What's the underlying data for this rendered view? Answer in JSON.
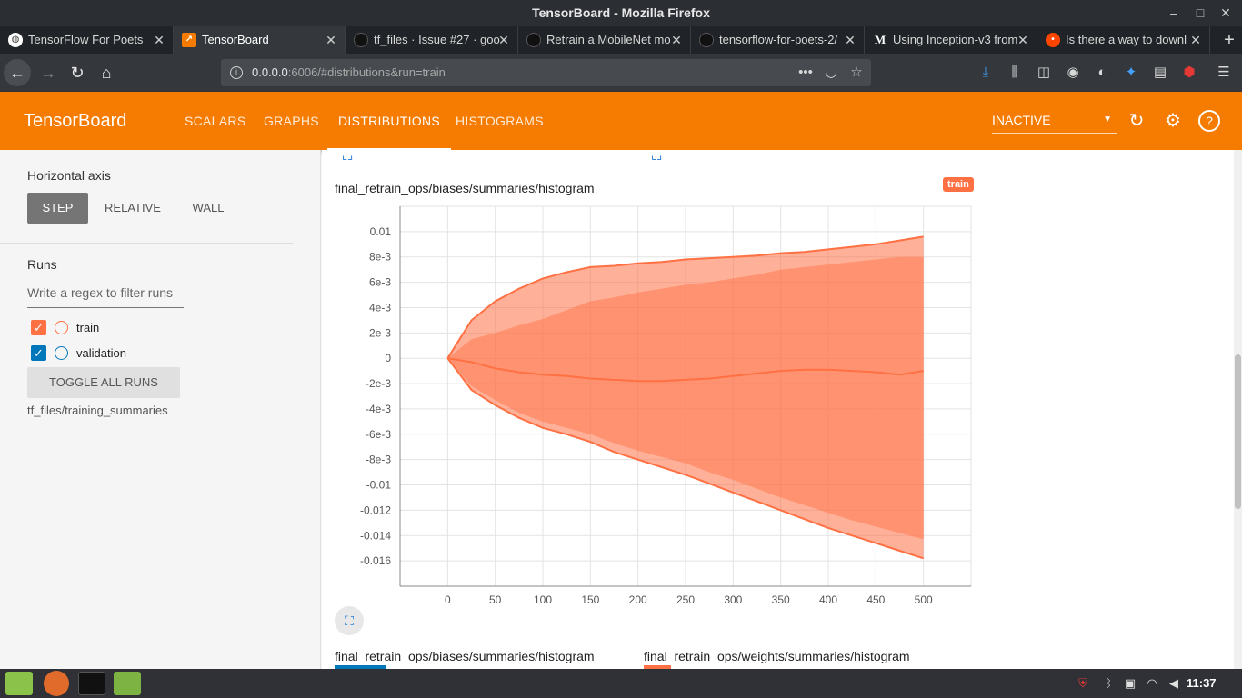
{
  "window": {
    "title": "TensorBoard - Mozilla Firefox"
  },
  "tabs": [
    {
      "title": "TensorFlow For Poets",
      "favicon": "globe-icon",
      "color": "#ffffff"
    },
    {
      "title": "TensorBoard",
      "favicon": "tensorboard-icon",
      "color": "#f57c00",
      "active": true
    },
    {
      "title": "tf_files · Issue #27 · goo",
      "favicon": "github-icon",
      "color": "#222222"
    },
    {
      "title": "Retrain a MobileNet mo",
      "favicon": "github-icon",
      "color": "#222222"
    },
    {
      "title": "tensorflow-for-poets-2/",
      "favicon": "github-icon",
      "color": "#222222"
    },
    {
      "title": "Using Inception-v3 from",
      "favicon": "medium-icon",
      "color": "#ffffff",
      "glyph": "M"
    },
    {
      "title": "Is there a way to downl",
      "favicon": "reddit-icon",
      "color": "#ff4500"
    }
  ],
  "navbar": {
    "url_host": "0.0.0.0",
    "url_rest": ":6006/#distributions&run=train"
  },
  "tensorboard": {
    "logo": "TensorBoard",
    "tabs": [
      "SCALARS",
      "GRAPHS",
      "DISTRIBUTIONS",
      "HISTOGRAMS"
    ],
    "active_tab": "DISTRIBUTIONS",
    "reload_status": "INACTIVE"
  },
  "sidebar": {
    "horizontal_axis_label": "Horizontal axis",
    "axis_options": [
      "STEP",
      "RELATIVE",
      "WALL"
    ],
    "runs_label": "Runs",
    "regex_placeholder": "Write a regex to filter runs",
    "runs": [
      {
        "name": "train",
        "checked": true,
        "color": "#ff7043"
      },
      {
        "name": "validation",
        "checked": true,
        "color": "#0077bb"
      }
    ],
    "toggle_all_label": "TOGGLE ALL RUNS",
    "logdir": "tf_files/training_summaries"
  },
  "main": {
    "chart_title": "final_retrain_ops/biases/summaries/histogram",
    "chart_badge": "train",
    "next_titles": [
      "final_retrain_ops/biases/summaries/histogram",
      "final_retrain_ops/weights/summaries/histogram"
    ]
  },
  "chart_data": {
    "type": "area",
    "title": "final_retrain_ops/biases/summaries/histogram",
    "xlabel": "",
    "ylabel": "",
    "x_ticks": [
      0,
      50,
      100,
      150,
      200,
      250,
      300,
      350,
      400,
      450,
      500
    ],
    "y_ticks": [
      0.01,
      0.008,
      0.006,
      0.004,
      0.002,
      0,
      -0.002,
      -0.004,
      -0.006,
      -0.008,
      -0.01,
      -0.012,
      -0.014,
      -0.016
    ],
    "y_tick_labels": [
      "0.01",
      "8e-3",
      "6e-3",
      "4e-3",
      "2e-3",
      "0",
      "-2e-3",
      "-4e-3",
      "-6e-3",
      "-8e-3",
      "-0.01",
      "-0.012",
      "-0.014",
      "-0.016"
    ],
    "xlim": [
      -50,
      550
    ],
    "ylim": [
      -0.018,
      0.012
    ],
    "grid": true,
    "x": [
      0,
      25,
      50,
      75,
      100,
      125,
      150,
      175,
      200,
      225,
      250,
      275,
      300,
      325,
      350,
      375,
      400,
      425,
      450,
      475,
      500
    ],
    "bands": [
      {
        "name": "max",
        "values": [
          0,
          0.003,
          0.0045,
          0.0055,
          0.0063,
          0.0068,
          0.0072,
          0.0073,
          0.0075,
          0.0076,
          0.0078,
          0.0079,
          0.008,
          0.0081,
          0.0083,
          0.0084,
          0.0086,
          0.0088,
          0.009,
          0.0093,
          0.0096
        ]
      },
      {
        "name": "upper_inner",
        "values": [
          0,
          0.0015,
          0.002,
          0.0026,
          0.0031,
          0.0038,
          0.0045,
          0.0048,
          0.0052,
          0.0055,
          0.0058,
          0.006,
          0.0063,
          0.0066,
          0.007,
          0.0072,
          0.0074,
          0.0076,
          0.0078,
          0.008,
          0.008
        ]
      },
      {
        "name": "median",
        "values": [
          0,
          -0.0003,
          -0.0008,
          -0.0011,
          -0.0013,
          -0.0014,
          -0.0016,
          -0.0017,
          -0.0018,
          -0.0018,
          -0.0017,
          -0.0016,
          -0.0014,
          -0.0012,
          -0.001,
          -0.0009,
          -0.0009,
          -0.001,
          -0.0011,
          -0.0013,
          -0.001
        ]
      },
      {
        "name": "lower_inner",
        "values": [
          0,
          -0.0022,
          -0.0033,
          -0.0043,
          -0.005,
          -0.0055,
          -0.006,
          -0.0067,
          -0.0073,
          -0.0078,
          -0.0083,
          -0.009,
          -0.0096,
          -0.0103,
          -0.011,
          -0.0116,
          -0.0122,
          -0.0128,
          -0.0133,
          -0.0138,
          -0.0143
        ]
      },
      {
        "name": "min",
        "values": [
          0,
          -0.0025,
          -0.0037,
          -0.0047,
          -0.0055,
          -0.006,
          -0.0066,
          -0.0074,
          -0.008,
          -0.0086,
          -0.0092,
          -0.0099,
          -0.0106,
          -0.0113,
          -0.012,
          -0.0127,
          -0.0134,
          -0.014,
          -0.0146,
          -0.0152,
          -0.0158
        ]
      }
    ],
    "color": "#ff7043"
  }
}
